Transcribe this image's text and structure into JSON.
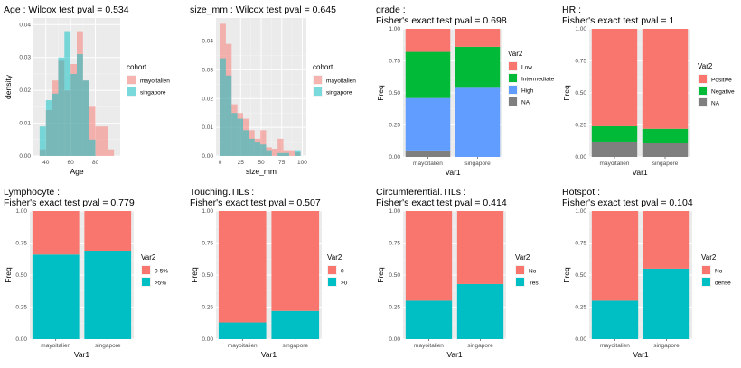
{
  "chart_data": [
    {
      "type": "histogram",
      "title": "Age : Wilcox test pval = 0.534",
      "xlabel": "Age",
      "ylabel": "density",
      "xlim": [
        30,
        100
      ],
      "ylim": [
        0,
        0.042
      ],
      "x_ticks": [
        40,
        60,
        80
      ],
      "y_ticks": [
        0,
        0.01,
        0.02,
        0.03,
        0.04
      ],
      "y_tick_labels": [
        "0.00",
        "0.01",
        "0.02",
        "0.03",
        "0.04"
      ],
      "bins": [
        [
          30,
          35
        ],
        [
          35,
          40
        ],
        [
          40,
          45
        ],
        [
          45,
          50
        ],
        [
          50,
          55
        ],
        [
          55,
          60
        ],
        [
          60,
          65
        ],
        [
          65,
          70
        ],
        [
          70,
          75
        ],
        [
          75,
          80
        ],
        [
          80,
          85
        ],
        [
          85,
          90
        ],
        [
          90,
          95
        ]
      ],
      "legend_title": "cohort",
      "series": [
        {
          "name": "mayoitalien",
          "color": "#F8766D",
          "values": [
            0,
            0.002,
            0.014,
            0.023,
            0.029,
            0.02,
            0.028,
            0.038,
            0.023,
            0.015,
            0.009,
            0.009,
            0.002
          ]
        },
        {
          "name": "singapore",
          "color": "#00BFC4",
          "values": [
            0,
            0.009,
            0.017,
            0.019,
            0.03,
            0.038,
            0.025,
            0.031,
            0.023,
            0.005,
            0,
            0,
            0
          ]
        }
      ]
    },
    {
      "type": "histogram",
      "title": "size_mm : Wilcox test pval = 0.645",
      "xlabel": "size_mm",
      "ylabel": "",
      "xlim": [
        -5,
        105
      ],
      "ylim": [
        0,
        0.048
      ],
      "x_ticks": [
        0,
        25,
        50,
        75,
        100
      ],
      "y_ticks": [
        0,
        0.01,
        0.02,
        0.03,
        0.04
      ],
      "y_tick_labels": [
        "0.00",
        "0.01",
        "0.02",
        "0.03",
        "0.04"
      ],
      "bins": [
        [
          0,
          7
        ],
        [
          7,
          14
        ],
        [
          14,
          21
        ],
        [
          21,
          28
        ],
        [
          28,
          35
        ],
        [
          35,
          42
        ],
        [
          42,
          49
        ],
        [
          49,
          56
        ],
        [
          56,
          63
        ],
        [
          63,
          70
        ],
        [
          70,
          77
        ],
        [
          77,
          84
        ],
        [
          84,
          91
        ],
        [
          91,
          98
        ]
      ],
      "legend_title": "cohort",
      "series": [
        {
          "name": "mayoitalien",
          "color": "#F8766D",
          "values": [
            0.046,
            0.039,
            0.018,
            0.015,
            0.013,
            0.009,
            0.006,
            0.009,
            0.003,
            0.0025,
            0.006,
            0.002,
            0.002,
            0.0015
          ]
        },
        {
          "name": "singapore",
          "color": "#00BFC4",
          "values": [
            0.034,
            0.028,
            0.015,
            0.013,
            0.009,
            0.006,
            0.005,
            0.004,
            0.002,
            0,
            0.001,
            0.001,
            0,
            0.002
          ]
        }
      ]
    },
    {
      "type": "stacked_bar",
      "title": "grade :",
      "subtitle": "Fisher's exact test pval = 0.698",
      "xlabel": "Var1",
      "ylabel": "Freq",
      "ylim": [
        0,
        1
      ],
      "categories": [
        "mayoitalien",
        "singapore"
      ],
      "y_ticks": [
        0,
        0.25,
        0.5,
        0.75,
        1
      ],
      "y_tick_labels": [
        "0.00",
        "0.25",
        "0.50",
        "0.75",
        "1.00"
      ],
      "legend_title": "Var2",
      "series": [
        {
          "name": "Low",
          "color": "#F8766D",
          "values": [
            0.18,
            0.14
          ]
        },
        {
          "name": "Intermediate",
          "color": "#00BA38",
          "values": [
            0.36,
            0.32
          ]
        },
        {
          "name": "High",
          "color": "#619CFF",
          "values": [
            0.41,
            0.54
          ]
        },
        {
          "name": "NA",
          "color": "#7F7F7F",
          "values": [
            0.05,
            0
          ]
        }
      ]
    },
    {
      "type": "stacked_bar",
      "title": "HR :",
      "subtitle": "Fisher's exact test pval = 1",
      "xlabel": "Var1",
      "ylabel": "Freq",
      "ylim": [
        0,
        1
      ],
      "categories": [
        "mayoitalien",
        "singapore"
      ],
      "y_ticks": [
        0,
        0.25,
        0.5,
        0.75,
        1
      ],
      "y_tick_labels": [
        "0.00",
        "0.25",
        "0.50",
        "0.75",
        "1.00"
      ],
      "legend_title": "Var2",
      "series": [
        {
          "name": "Positive",
          "color": "#F8766D",
          "values": [
            0.76,
            0.78
          ]
        },
        {
          "name": "Negative",
          "color": "#00BA38",
          "values": [
            0.12,
            0.11
          ]
        },
        {
          "name": "NA",
          "color": "#7F7F7F",
          "values": [
            0.12,
            0.11
          ]
        }
      ]
    },
    {
      "type": "stacked_bar",
      "title": "Lymphocyte :",
      "subtitle": "Fisher's exact test pval = 0.779",
      "xlabel": "Var1",
      "ylabel": "Freq",
      "ylim": [
        0,
        1
      ],
      "categories": [
        "mayoitalien",
        "singapore"
      ],
      "y_ticks": [
        0,
        0.25,
        0.5,
        0.75,
        1
      ],
      "y_tick_labels": [
        "0.00",
        "0.25",
        "0.50",
        "0.75",
        "1.00"
      ],
      "legend_title": "Var2",
      "series": [
        {
          "name": "0-5%",
          "color": "#F8766D",
          "values": [
            0.34,
            0.31
          ]
        },
        {
          "name": ">5%",
          "color": "#00BFC4",
          "values": [
            0.66,
            0.69
          ]
        }
      ]
    },
    {
      "type": "stacked_bar",
      "title": "Touching.TILs :",
      "subtitle": "Fisher's exact test pval = 0.507",
      "xlabel": "Var1",
      "ylabel": "Freq",
      "ylim": [
        0,
        1
      ],
      "categories": [
        "mayoitalien",
        "singapore"
      ],
      "y_ticks": [
        0,
        0.25,
        0.5,
        0.75,
        1
      ],
      "y_tick_labels": [
        "0.00",
        "0.25",
        "0.50",
        "0.75",
        "1.00"
      ],
      "legend_title": "Var2",
      "series": [
        {
          "name": "0",
          "color": "#F8766D",
          "values": [
            0.87,
            0.78
          ]
        },
        {
          "name": ">0",
          "color": "#00BFC4",
          "values": [
            0.13,
            0.22
          ]
        }
      ]
    },
    {
      "type": "stacked_bar",
      "title": "Circumferential.TILs :",
      "subtitle": "Fisher's exact test pval = 0.414",
      "xlabel": "Var1",
      "ylabel": "Freq",
      "ylim": [
        0,
        1
      ],
      "categories": [
        "mayoitalien",
        "singapore"
      ],
      "y_ticks": [
        0,
        0.25,
        0.5,
        0.75,
        1
      ],
      "y_tick_labels": [
        "0.00",
        "0.25",
        "0.50",
        "0.75",
        "1.00"
      ],
      "legend_title": "Var2",
      "series": [
        {
          "name": "No",
          "color": "#F8766D",
          "values": [
            0.7,
            0.57
          ]
        },
        {
          "name": "Yes",
          "color": "#00BFC4",
          "values": [
            0.3,
            0.43
          ]
        }
      ]
    },
    {
      "type": "stacked_bar",
      "title": "Hotspot :",
      "subtitle": "Fisher's exact test pval = 0.104",
      "xlabel": "Var1",
      "ylabel": "Freq",
      "ylim": [
        0,
        1
      ],
      "categories": [
        "mayoitalien",
        "singapore"
      ],
      "y_ticks": [
        0,
        0.25,
        0.5,
        0.75,
        1
      ],
      "y_tick_labels": [
        "0.00",
        "0.25",
        "0.50",
        "0.75",
        "1.00"
      ],
      "legend_title": "Var2",
      "series": [
        {
          "name": "No",
          "color": "#F8766D",
          "values": [
            0.7,
            0.45
          ]
        },
        {
          "name": "dense",
          "color": "#00BFC4",
          "values": [
            0.3,
            0.55
          ]
        }
      ]
    }
  ]
}
